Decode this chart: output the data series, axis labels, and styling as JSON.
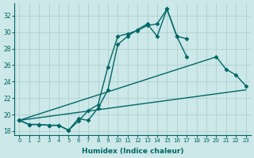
{
  "xlabel": "Humidex (Indice chaleur)",
  "bg_color": "#cce8e8",
  "grid_color": "#b0d0d0",
  "line_color": "#006666",
  "xlim": [
    -0.5,
    23.5
  ],
  "ylim": [
    17.5,
    33.5
  ],
  "yticks": [
    18,
    20,
    22,
    24,
    26,
    28,
    30,
    32
  ],
  "xticks": [
    0,
    1,
    2,
    3,
    4,
    5,
    6,
    7,
    8,
    9,
    10,
    11,
    12,
    13,
    14,
    15,
    16,
    17,
    18,
    19,
    20,
    21,
    22,
    23
  ],
  "lines": [
    {
      "x": [
        0,
        1,
        2,
        3,
        4,
        5,
        6,
        7,
        8,
        9,
        10,
        11,
        12,
        13,
        14,
        15,
        16,
        17,
        18,
        19,
        20,
        21,
        22,
        23
      ],
      "y": [
        19.3,
        18.8,
        18.8,
        18.7,
        18.7,
        18.1,
        19.2,
        20.5,
        21.2,
        25.8,
        29.5,
        29.8,
        30.2,
        30.8,
        31.0,
        32.8,
        29.5,
        29.2,
        null,
        null,
        null,
        null,
        null,
        null
      ],
      "marker": "D",
      "markersize": 2.5,
      "linewidth": 1.0
    },
    {
      "x": [
        0,
        1,
        2,
        3,
        4,
        5,
        6,
        7,
        8,
        9,
        10,
        11,
        12,
        13,
        14,
        15,
        16,
        17
      ],
      "y": [
        19.3,
        18.8,
        18.8,
        18.7,
        18.7,
        18.1,
        19.5,
        19.3,
        20.8,
        23.0,
        28.5,
        29.5,
        30.3,
        31.0,
        29.5,
        32.8,
        29.5,
        27.0
      ],
      "marker": "D",
      "markersize": 2.5,
      "linewidth": 1.0
    },
    {
      "x": [
        0,
        20,
        21,
        22,
        23
      ],
      "y": [
        19.3,
        27.0,
        25.5,
        24.8,
        23.5
      ],
      "marker": "D",
      "markersize": 2.5,
      "linewidth": 1.0
    },
    {
      "x": [
        0,
        23
      ],
      "y": [
        19.3,
        23.0
      ],
      "marker": null,
      "markersize": 0,
      "linewidth": 1.0
    }
  ]
}
